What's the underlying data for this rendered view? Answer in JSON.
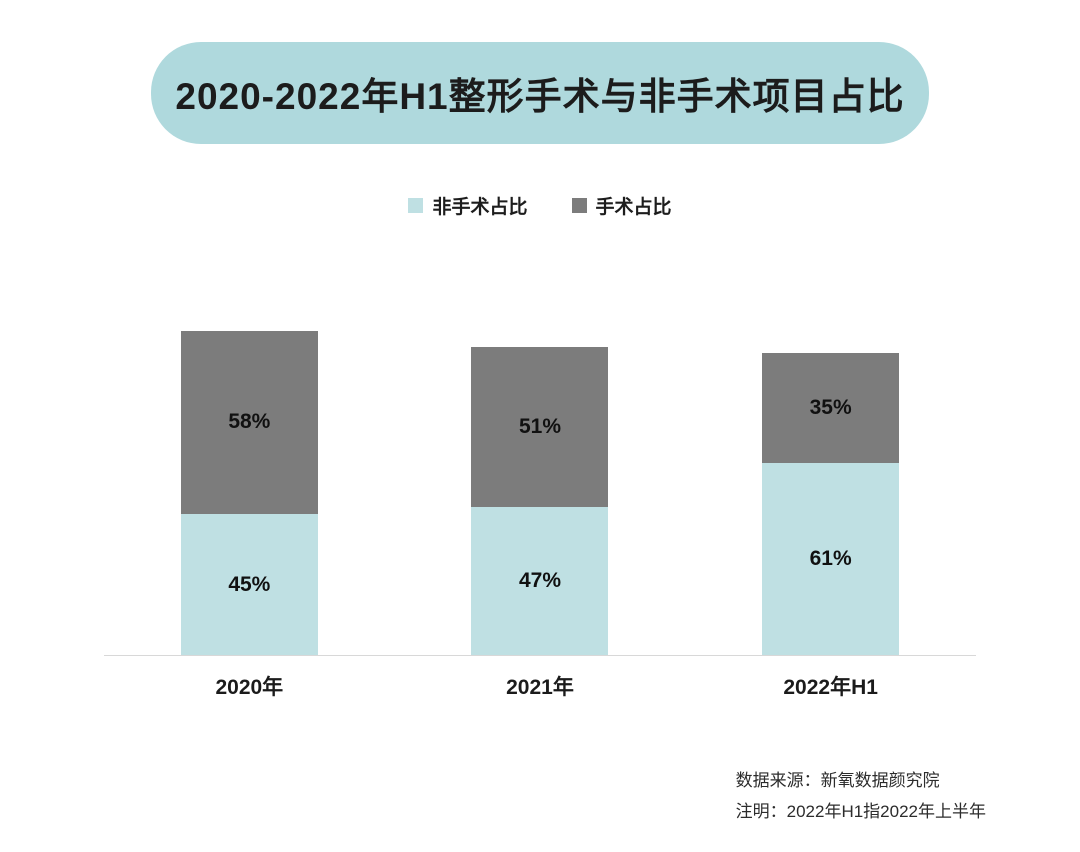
{
  "title": "2020-2022年H1整形手术与非手术项目占比",
  "chart_data": {
    "type": "bar",
    "stacked": true,
    "title": "2020-2022年H1整形手术与非手术项目占比",
    "categories": [
      "2020年",
      "2021年",
      "2022年H1"
    ],
    "series": [
      {
        "name": "非手术占比",
        "color": "#bfe0e3",
        "values": [
          45,
          47,
          61
        ]
      },
      {
        "name": "手术占比",
        "color": "#7c7c7c",
        "values": [
          58,
          51,
          35
        ]
      }
    ],
    "value_label_suffix": "%",
    "legend_position": "top-center",
    "grid": false,
    "axis_line_color": "#d8d8d8"
  },
  "footer": {
    "source": "数据来源：新氧数据颜究院",
    "note": "注明：2022年H1指2022年上半年"
  }
}
